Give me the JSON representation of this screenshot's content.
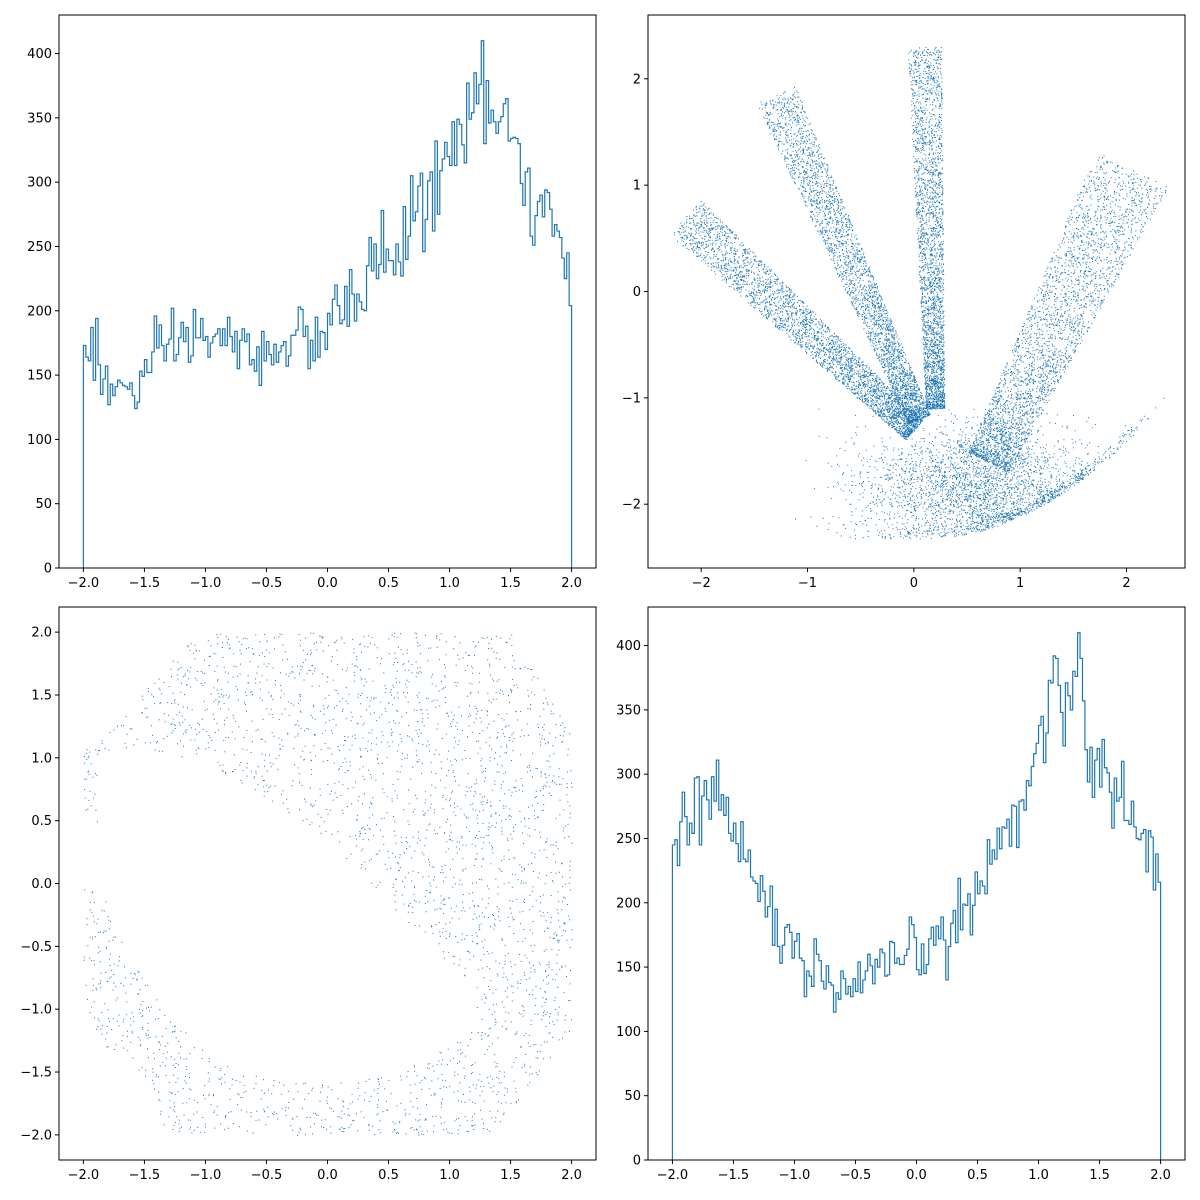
{
  "chart_data": [
    {
      "type": "histogram",
      "panel": "top-left",
      "histtype": "step",
      "title": "",
      "xlabel": "",
      "ylabel": "",
      "xlim": [
        -2.2,
        2.2
      ],
      "ylim": [
        0,
        430
      ],
      "xticks": [
        -2.0,
        -1.5,
        -1.0,
        -0.5,
        0.0,
        0.5,
        1.0,
        1.5,
        2.0
      ],
      "xtick_labels": [
        "−2.0",
        "−1.5",
        "−1.0",
        "−0.5",
        "0.0",
        "0.5",
        "1.0",
        "1.5",
        "2.0"
      ],
      "yticks": [
        0,
        50,
        100,
        150,
        200,
        250,
        300,
        350,
        400
      ],
      "ytick_labels": [
        "0",
        "50",
        "100",
        "150",
        "200",
        "250",
        "300",
        "350",
        "400"
      ],
      "bin_range": [
        -2.0,
        2.0
      ],
      "envelope": [
        [
          -2.0,
          180
        ],
        [
          -1.9,
          160
        ],
        [
          -1.8,
          135
        ],
        [
          -1.7,
          140
        ],
        [
          -1.55,
          140
        ],
        [
          -1.4,
          160
        ],
        [
          -1.25,
          175
        ],
        [
          -1.1,
          180
        ],
        [
          -0.95,
          180
        ],
        [
          -0.8,
          175
        ],
        [
          -0.65,
          165
        ],
        [
          -0.5,
          165
        ],
        [
          -0.35,
          180
        ],
        [
          -0.2,
          175
        ],
        [
          -0.05,
          180
        ],
        [
          0.1,
          195
        ],
        [
          0.25,
          215
        ],
        [
          0.4,
          240
        ],
        [
          0.55,
          245
        ],
        [
          0.7,
          270
        ],
        [
          0.85,
          290
        ],
        [
          1.0,
          320
        ],
        [
          1.1,
          345
        ],
        [
          1.2,
          360
        ],
        [
          1.27,
          370
        ],
        [
          1.35,
          350
        ],
        [
          1.45,
          330
        ],
        [
          1.55,
          315
        ],
        [
          1.65,
          295
        ],
        [
          1.75,
          275
        ],
        [
          1.85,
          260
        ],
        [
          1.92,
          240
        ],
        [
          2.0,
          215
        ]
      ],
      "peaks": [
        [
          1.27,
          410
        ],
        [
          1.45,
          361
        ],
        [
          1.87,
          267
        ],
        [
          -1.9,
          194
        ]
      ],
      "color": "#1f77b4"
    },
    {
      "type": "scatter",
      "panel": "top-right",
      "marker": "pixel",
      "title": "",
      "xlabel": "",
      "ylabel": "",
      "xlim": [
        -2.5,
        2.55
      ],
      "ylim": [
        -2.6,
        2.6
      ],
      "xticks": [
        -2,
        -1,
        0,
        1,
        2
      ],
      "xtick_labels": [
        "−2",
        "−1",
        "0",
        "1",
        "2"
      ],
      "yticks": [
        -2,
        -1,
        0,
        1,
        2
      ],
      "ytick_labels": [
        "−2",
        "−1",
        "0",
        "1",
        "2"
      ],
      "description_shape": "dense cluster near (0.6,-1.9) with four arms",
      "clusters": [
        {
          "kind": "blob",
          "center": [
            0.6,
            -1.85
          ],
          "spread": [
            0.55,
            0.3
          ],
          "count": 9000
        },
        {
          "kind": "arm",
          "from": [
            0.0,
            -1.3
          ],
          "to": [
            -2.15,
            0.7
          ],
          "width": 0.22,
          "count": 3200
        },
        {
          "kind": "arm",
          "from": [
            0.05,
            -1.2
          ],
          "to": [
            -1.3,
            1.85
          ],
          "width": 0.2,
          "count": 3000
        },
        {
          "kind": "arm",
          "from": [
            0.2,
            -1.1
          ],
          "to": [
            0.1,
            2.3
          ],
          "width": 0.16,
          "count": 2800
        },
        {
          "kind": "arm",
          "from": [
            0.7,
            -1.6
          ],
          "to": [
            2.05,
            1.15
          ],
          "width": 0.38,
          "count": 3000
        }
      ],
      "color": "#1f77b4"
    },
    {
      "type": "scatter",
      "panel": "bottom-left",
      "marker": "pixel",
      "title": "",
      "xlabel": "",
      "ylabel": "",
      "xlim": [
        -2.2,
        2.2
      ],
      "ylim": [
        -2.2,
        2.2
      ],
      "xticks": [
        -2.0,
        -1.5,
        -1.0,
        -0.5,
        0.0,
        0.5,
        1.0,
        1.5,
        2.0
      ],
      "xtick_labels": [
        "−2.0",
        "−1.5",
        "−1.0",
        "−0.5",
        "0.0",
        "0.5",
        "1.0",
        "1.5",
        "2.0"
      ],
      "yticks": [
        -2.0,
        -1.5,
        -1.0,
        -0.5,
        0.0,
        0.5,
        1.0,
        1.5,
        2.0
      ],
      "ytick_labels": [
        "−2.0",
        "−1.5",
        "−1.0",
        "−0.5",
        "0.0",
        "0.5",
        "1.0",
        "1.5",
        "2.0"
      ],
      "outer_boundary": [
        [
          -1.05,
          2.0
        ],
        [
          1.5,
          2.0
        ],
        [
          2.0,
          1.2
        ],
        [
          2.0,
          -1.15
        ],
        [
          1.35,
          -2.0
        ],
        [
          -1.3,
          -2.0
        ],
        [
          -1.6,
          -1.4
        ],
        [
          -1.9,
          -1.25
        ],
        [
          -2.0,
          -0.9
        ],
        [
          -2.0,
          0.58
        ],
        [
          -1.92,
          0.6
        ],
        [
          -1.8,
          0.2
        ],
        [
          -1.55,
          0.0
        ],
        [
          -2.2,
          0.0
        ],
        [
          -2.2,
          1.1
        ],
        [
          -1.9,
          1.1
        ],
        [
          -1.7,
          1.3
        ],
        [
          -1.35,
          1.7
        ]
      ],
      "hole_boundary": [
        [
          -1.85,
          1.05
        ],
        [
          -1.5,
          1.07
        ],
        [
          -1.1,
          0.97
        ],
        [
          -0.7,
          0.8
        ],
        [
          -0.3,
          0.55
        ],
        [
          0.05,
          0.3
        ],
        [
          0.4,
          -0.05
        ],
        [
          0.8,
          -0.45
        ],
        [
          1.1,
          -0.72
        ],
        [
          1.22,
          -0.85
        ],
        [
          1.2,
          -1.05
        ],
        [
          1.1,
          -1.2
        ],
        [
          0.9,
          -1.35
        ],
        [
          0.5,
          -1.52
        ],
        [
          0.0,
          -1.6
        ],
        [
          -0.5,
          -1.55
        ],
        [
          -0.95,
          -1.4
        ],
        [
          -1.3,
          -1.05
        ],
        [
          -1.55,
          -0.7
        ],
        [
          -1.75,
          -0.35
        ],
        [
          -1.85,
          0.0
        ],
        [
          -1.88,
          0.4
        ],
        [
          -1.9,
          0.8
        ]
      ],
      "count": 38000,
      "color": "#1f77b4"
    },
    {
      "type": "histogram",
      "panel": "bottom-right",
      "histtype": "step",
      "title": "",
      "xlabel": "",
      "ylabel": "",
      "xlim": [
        -2.2,
        2.2
      ],
      "ylim": [
        0,
        430
      ],
      "xticks": [
        -2.0,
        -1.5,
        -1.0,
        -0.5,
        0.0,
        0.5,
        1.0,
        1.5,
        2.0
      ],
      "xtick_labels": [
        "−2.0",
        "−1.5",
        "−1.0",
        "−0.5",
        "0.0",
        "0.5",
        "1.0",
        "1.5",
        "2.0"
      ],
      "yticks": [
        0,
        50,
        100,
        150,
        200,
        250,
        300,
        350,
        400
      ],
      "ytick_labels": [
        "0",
        "50",
        "100",
        "150",
        "200",
        "250",
        "300",
        "350",
        "400"
      ],
      "bin_range": [
        -2.0,
        2.0
      ],
      "envelope": [
        [
          -2.0,
          245
        ],
        [
          -1.9,
          265
        ],
        [
          -1.8,
          275
        ],
        [
          -1.7,
          285
        ],
        [
          -1.62,
          295
        ],
        [
          -1.5,
          260
        ],
        [
          -1.4,
          235
        ],
        [
          -1.3,
          210
        ],
        [
          -1.2,
          190
        ],
        [
          -1.1,
          175
        ],
        [
          -1.0,
          165
        ],
        [
          -0.9,
          150
        ],
        [
          -0.8,
          140
        ],
        [
          -0.7,
          133
        ],
        [
          -0.6,
          125
        ],
        [
          -0.5,
          130
        ],
        [
          -0.4,
          140
        ],
        [
          -0.3,
          145
        ],
        [
          -0.2,
          150
        ],
        [
          -0.1,
          155
        ],
        [
          0.0,
          160
        ],
        [
          0.1,
          165
        ],
        [
          0.2,
          175
        ],
        [
          0.3,
          185
        ],
        [
          0.4,
          195
        ],
        [
          0.5,
          205
        ],
        [
          0.6,
          225
        ],
        [
          0.7,
          250
        ],
        [
          0.8,
          265
        ],
        [
          0.9,
          290
        ],
        [
          1.0,
          330
        ],
        [
          1.1,
          370
        ],
        [
          1.2,
          360
        ],
        [
          1.3,
          365
        ],
        [
          1.4,
          330
        ],
        [
          1.5,
          310
        ],
        [
          1.6,
          295
        ],
        [
          1.7,
          280
        ],
        [
          1.8,
          260
        ],
        [
          1.9,
          245
        ],
        [
          2.0,
          210
        ]
      ],
      "peaks": [
        [
          1.32,
          410
        ],
        [
          1.13,
          392
        ],
        [
          -1.62,
          311
        ]
      ],
      "color": "#1f77b4"
    }
  ]
}
